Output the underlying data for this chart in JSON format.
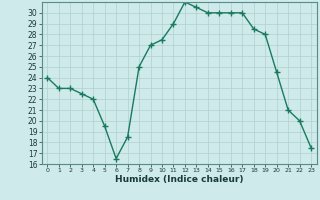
{
  "x": [
    0,
    1,
    2,
    3,
    4,
    5,
    6,
    7,
    8,
    9,
    10,
    11,
    12,
    13,
    14,
    15,
    16,
    17,
    18,
    19,
    20,
    21,
    22,
    23
  ],
  "y": [
    24,
    23,
    23,
    22.5,
    22,
    19.5,
    16.5,
    18.5,
    25,
    27,
    27.5,
    29,
    31,
    30.5,
    30,
    30,
    30,
    30,
    28.5,
    28,
    24.5,
    21,
    20,
    17.5
  ],
  "line_color": "#1a7a5e",
  "marker_color": "#1a7a5e",
  "bg_color": "#ceeaea",
  "grid_color": "#b0cfcf",
  "xlabel": "Humidex (Indice chaleur)",
  "ylim_min": 16,
  "ylim_max": 31,
  "xlim_min": -0.5,
  "xlim_max": 23.5,
  "yticks": [
    16,
    17,
    18,
    19,
    20,
    21,
    22,
    23,
    24,
    25,
    26,
    27,
    28,
    29,
    30
  ],
  "xticks": [
    0,
    1,
    2,
    3,
    4,
    5,
    6,
    7,
    8,
    9,
    10,
    11,
    12,
    13,
    14,
    15,
    16,
    17,
    18,
    19,
    20,
    21,
    22,
    23
  ],
  "xlabel_fontsize": 6.5,
  "tick_fontsize": 5.5,
  "linewidth": 1.0,
  "markersize": 2.0
}
